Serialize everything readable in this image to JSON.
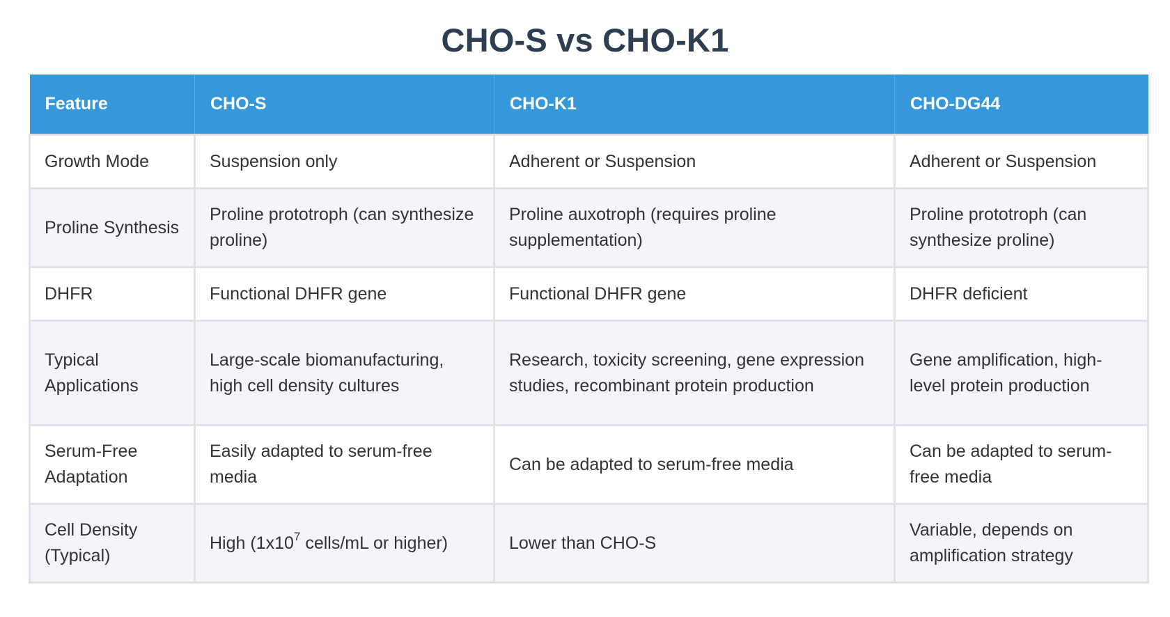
{
  "title": "CHO-S vs CHO-K1",
  "table": {
    "headers": [
      "Feature",
      "CHO-S",
      "CHO-K1",
      "CHO-DG44"
    ],
    "rows": [
      [
        "Growth Mode",
        "Suspension only",
        "Adherent or Suspension",
        "Adherent or Suspension"
      ],
      [
        "Proline Synthesis",
        "Proline prototroph (can synthesize proline)",
        "Proline auxotroph (requires proline supplementation)",
        "Proline prototroph (can synthesize proline)"
      ],
      [
        "DHFR",
        "Functional DHFR gene",
        "Functional DHFR gene",
        "DHFR deficient"
      ],
      [
        "Typical Applications",
        "Large-scale biomanufacturing, high cell density cultures",
        "Research, toxicity screening, gene expression studies, recombinant protein production",
        "Gene amplification, high-level protein production"
      ],
      [
        "Serum-Free Adaptation",
        "Easily adapted to serum-free media",
        "Can be adapted to serum-free media",
        "Can be adapted to serum-free media"
      ],
      [
        "Cell Density (Typical)",
        "",
        "Lower than CHO-S",
        "Variable, depends on amplification strategy"
      ]
    ],
    "cell_density_cho_s": {
      "prefix": "High (1x10",
      "exponent": "7",
      "suffix": " cells/mL or higher)"
    }
  }
}
